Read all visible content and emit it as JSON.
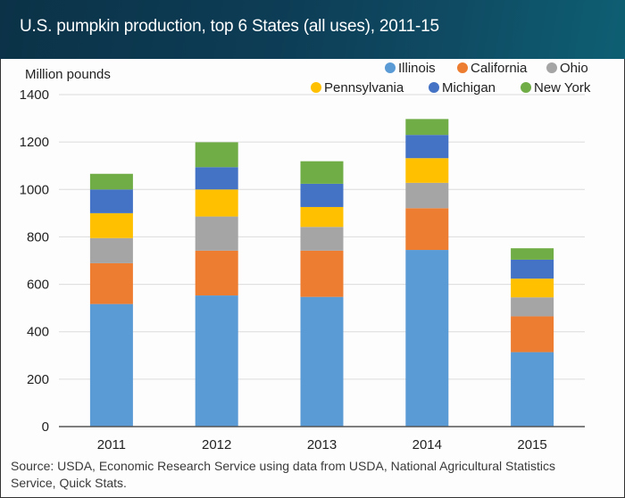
{
  "header": {
    "title": "U.S. pumpkin production, top 6 States (all uses), 2011-15"
  },
  "footer": {
    "source": "Source: USDA, Economic Research Service using data from USDA, National Agricultural Statistics Service, Quick Stats."
  },
  "chart_data": {
    "type": "bar",
    "stacked": true,
    "title": "U.S. pumpkin production, top 6 States (all uses), 2011-15",
    "xlabel": "",
    "ylabel": "Million pounds",
    "ylim": [
      0,
      1400
    ],
    "yticks": [
      0,
      200,
      400,
      600,
      800,
      1000,
      1200,
      1400
    ],
    "grid": true,
    "legend_position": "top-right",
    "categories": [
      "2011",
      "2012",
      "2013",
      "2014",
      "2015"
    ],
    "series": [
      {
        "name": "Illinois",
        "color": "#5b9bd5",
        "values": [
          517,
          553,
          547,
          745,
          314
        ]
      },
      {
        "name": "California",
        "color": "#ed7d31",
        "values": [
          172,
          189,
          195,
          176,
          151
        ]
      },
      {
        "name": "Ohio",
        "color": "#a5a5a5",
        "values": [
          106,
          144,
          100,
          107,
          80
        ]
      },
      {
        "name": "Pennsylvania",
        "color": "#ffc000",
        "values": [
          105,
          114,
          84,
          104,
          79
        ]
      },
      {
        "name": "Michigan",
        "color": "#4472c4",
        "values": [
          100,
          94,
          98,
          98,
          80
        ]
      },
      {
        "name": "New York",
        "color": "#70ad47",
        "values": [
          66,
          105,
          95,
          67,
          48
        ]
      }
    ]
  }
}
